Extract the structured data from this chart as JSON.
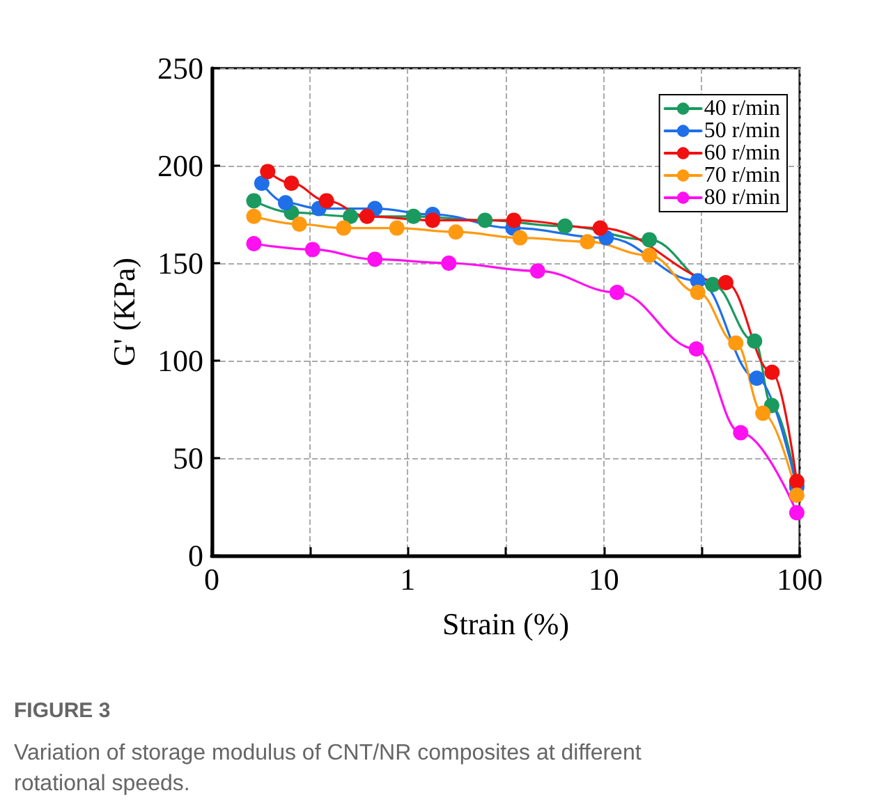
{
  "chart_data": {
    "type": "line",
    "xlabel": "Strain (%)",
    "ylabel": "G' (KPa)",
    "annotations": [
      "FIGURE 3",
      "Variation of storage modulus of CNT/NR composites at different rotational speeds."
    ],
    "log": "x",
    "xlim": [
      0.1,
      100
    ],
    "xticks": [
      {
        "value": 0.1,
        "label": "0"
      },
      {
        "value": 0.3162,
        "label": null
      },
      1,
      {
        "value": 3.162,
        "label": null
      },
      10,
      {
        "value": 31.62,
        "label": null
      },
      100
    ],
    "ylim": [
      0,
      250
    ],
    "yticks": [
      0,
      50,
      100,
      150,
      200,
      250
    ],
    "grid": true,
    "legend": "top right",
    "marker": "circle",
    "line_style": "solid",
    "series": [
      {
        "name": "40 r/min",
        "color": "#1a9a5e",
        "x": [
          0.164,
          0.255,
          0.51,
          1.07,
          2.48,
          6.35,
          17.1,
          36,
          58.9,
          72,
          96.7
        ],
        "values": [
          182,
          176,
          174,
          174,
          172,
          169,
          162,
          139,
          110,
          77,
          36
        ]
      },
      {
        "name": "50 r/min",
        "color": "#1f6fe8",
        "x": [
          0.18,
          0.238,
          0.352,
          0.68,
          1.34,
          3.44,
          10.3,
          30.2,
          60.4,
          96.7
        ],
        "values": [
          191,
          181,
          178,
          178,
          175,
          168,
          163,
          141,
          91,
          35
        ]
      },
      {
        "name": "60 r/min",
        "color": "#f01010",
        "x": [
          0.193,
          0.255,
          0.385,
          0.62,
          1.34,
          3.48,
          9.6,
          42,
          72.3,
          96.7
        ],
        "values": [
          197,
          191,
          182,
          174,
          172,
          172,
          168,
          140,
          94,
          38
        ]
      },
      {
        "name": "70 r/min",
        "color": "#ff9a10",
        "x": [
          0.164,
          0.28,
          0.471,
          0.88,
          1.76,
          3.74,
          8.26,
          17.1,
          30.2,
          47.2,
          64.9,
          96.7
        ],
        "values": [
          174,
          170,
          168,
          168,
          166,
          163,
          161,
          154,
          135,
          109,
          73,
          31
        ]
      },
      {
        "name": "80 r/min",
        "color": "#ff10f0",
        "x": [
          0.164,
          0.327,
          0.68,
          1.62,
          4.6,
          11.7,
          29.7,
          50,
          96.7
        ],
        "values": [
          160,
          157,
          152,
          150,
          146,
          135,
          106,
          63,
          22
        ]
      }
    ]
  }
}
